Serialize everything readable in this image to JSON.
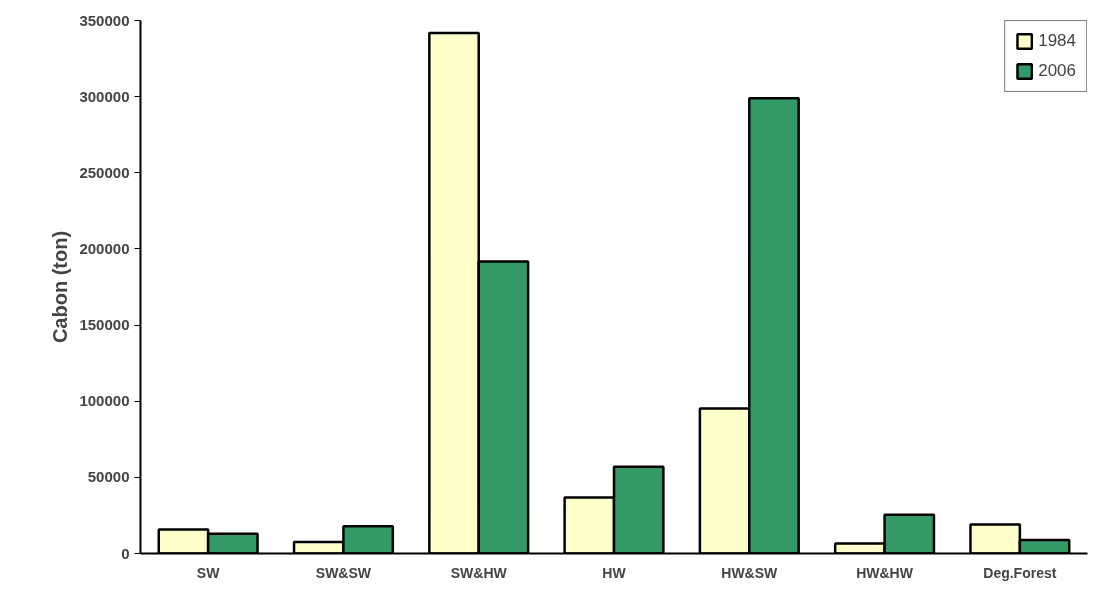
{
  "chart_data": {
    "type": "bar",
    "ylabel": "Cabon (ton)",
    "categories": [
      "SW",
      "SW&SW",
      "SW&HW",
      "HW",
      "HW&SW",
      "HW&HW",
      "Deg.Forest"
    ],
    "series": [
      {
        "name": "1984",
        "color": "#ffffcc",
        "values": [
          15700,
          7600,
          341800,
          36700,
          95200,
          6500,
          19000
        ]
      },
      {
        "name": "2006",
        "color": "#339966",
        "values": [
          13000,
          17900,
          191700,
          57000,
          299000,
          25500,
          8900
        ]
      }
    ],
    "ylim": [
      0,
      350000
    ],
    "yticks": [
      0,
      50000,
      100000,
      150000,
      200000,
      250000,
      300000,
      350000
    ],
    "grid": false,
    "legend": "top right"
  }
}
